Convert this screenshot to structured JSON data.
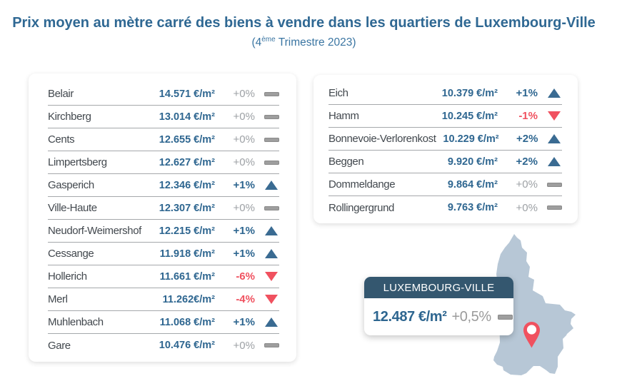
{
  "title": "Prix moyen au mètre carré des biens à vendre dans les quartiers de Luxembourg-Ville",
  "subtitle": {
    "prefix": "(4",
    "sup": "ème",
    "suffix": " Trimestre 2023)"
  },
  "panels": {
    "left": {
      "rows": [
        {
          "name": "Belair",
          "price": "14.571 €/m²",
          "change": "+0%",
          "trend": "flat"
        },
        {
          "name": "Kirchberg",
          "price": "13.014 €/m²",
          "change": "+0%",
          "trend": "flat"
        },
        {
          "name": "Cents",
          "price": "12.655 €/m²",
          "change": "+0%",
          "trend": "flat"
        },
        {
          "name": "Limpertsberg",
          "price": "12.627 €/m²",
          "change": "+0%",
          "trend": "flat"
        },
        {
          "name": "Gasperich",
          "price": "12.346 €/m²",
          "change": "+1%",
          "trend": "up"
        },
        {
          "name": "Ville-Haute",
          "price": "12.307 €/m²",
          "change": "+0%",
          "trend": "flat"
        },
        {
          "name": "Neudorf-Weimershof",
          "price": "12.215 €/m²",
          "change": "+1%",
          "trend": "up"
        },
        {
          "name": "Cessange",
          "price": "11.918 €/m²",
          "change": "+1%",
          "trend": "up"
        },
        {
          "name": "Hollerich",
          "price": "11.661 €/m²",
          "change": "-6%",
          "trend": "down"
        },
        {
          "name": "Merl",
          "price": "11.262€/m²",
          "change": "-4%",
          "trend": "down"
        },
        {
          "name": "Muhlenbach",
          "price": "11.068 €/m²",
          "change": "+1%",
          "trend": "up"
        },
        {
          "name": "Gare",
          "price": "10.476 €/m²",
          "change": "+0%",
          "trend": "flat"
        }
      ]
    },
    "right": {
      "rows": [
        {
          "name": "Eich",
          "price": "10.379 €/m²",
          "change": "+1%",
          "trend": "up"
        },
        {
          "name": "Hamm",
          "price": "10.245 €/m²",
          "change": "-1%",
          "trend": "down"
        },
        {
          "name": "Bonnevoie-Verlorenkost",
          "price": "10.229 €/m²",
          "change": "+2%",
          "trend": "up"
        },
        {
          "name": "Beggen",
          "price": "9.920 €/m²",
          "change": "+2%",
          "trend": "up"
        },
        {
          "name": "Dommeldange",
          "price": "9.864 €/m²",
          "change": "+0%",
          "trend": "flat"
        },
        {
          "name": "Rollingergrund",
          "price": "9.763 €/m²",
          "change": "+0%",
          "trend": "flat"
        }
      ]
    }
  },
  "map_callout": {
    "label": "LUXEMBOURG-VILLE",
    "price": "12.487 €/m²",
    "change": "+0,5%",
    "trend": "flat"
  },
  "colors": {
    "title_blue": "#2f6893",
    "price_blue": "#2e6690",
    "up_blue": "#3a6b92",
    "down_red": "#f0515f",
    "neutral_gray": "#9e9e9e",
    "map_fill": "#b7c7d6",
    "callout_header": "#34576f",
    "pin_red": "#f0515f"
  },
  "chart_data": {
    "type": "table",
    "title": "Prix moyen au mètre carré des biens à vendre dans les quartiers de Luxembourg-Ville",
    "subtitle": "(4ème Trimestre 2023)",
    "unit": "€/m²",
    "columns": [
      "quartier",
      "prix_eur_m2",
      "evolution_pct"
    ],
    "rows": [
      {
        "quartier": "Belair",
        "prix_eur_m2": 14571,
        "evolution_pct": 0,
        "trend": "flat"
      },
      {
        "quartier": "Kirchberg",
        "prix_eur_m2": 13014,
        "evolution_pct": 0,
        "trend": "flat"
      },
      {
        "quartier": "Cents",
        "prix_eur_m2": 12655,
        "evolution_pct": 0,
        "trend": "flat"
      },
      {
        "quartier": "Limpertsberg",
        "prix_eur_m2": 12627,
        "evolution_pct": 0,
        "trend": "flat"
      },
      {
        "quartier": "Gasperich",
        "prix_eur_m2": 12346,
        "evolution_pct": 1,
        "trend": "up"
      },
      {
        "quartier": "Ville-Haute",
        "prix_eur_m2": 12307,
        "evolution_pct": 0,
        "trend": "flat"
      },
      {
        "quartier": "Neudorf-Weimershof",
        "prix_eur_m2": 12215,
        "evolution_pct": 1,
        "trend": "up"
      },
      {
        "quartier": "Cessange",
        "prix_eur_m2": 11918,
        "evolution_pct": 1,
        "trend": "up"
      },
      {
        "quartier": "Hollerich",
        "prix_eur_m2": 11661,
        "evolution_pct": -6,
        "trend": "down"
      },
      {
        "quartier": "Merl",
        "prix_eur_m2": 11262,
        "evolution_pct": -4,
        "trend": "down"
      },
      {
        "quartier": "Muhlenbach",
        "prix_eur_m2": 11068,
        "evolution_pct": 1,
        "trend": "up"
      },
      {
        "quartier": "Gare",
        "prix_eur_m2": 10476,
        "evolution_pct": 0,
        "trend": "flat"
      },
      {
        "quartier": "Eich",
        "prix_eur_m2": 10379,
        "evolution_pct": 1,
        "trend": "up"
      },
      {
        "quartier": "Hamm",
        "prix_eur_m2": 10245,
        "evolution_pct": -1,
        "trend": "down"
      },
      {
        "quartier": "Bonnevoie-Verlorenkost",
        "prix_eur_m2": 10229,
        "evolution_pct": 2,
        "trend": "up"
      },
      {
        "quartier": "Beggen",
        "prix_eur_m2": 9920,
        "evolution_pct": 2,
        "trend": "up"
      },
      {
        "quartier": "Dommeldange",
        "prix_eur_m2": 9864,
        "evolution_pct": 0,
        "trend": "flat"
      },
      {
        "quartier": "Rollingergrund",
        "prix_eur_m2": 9763,
        "evolution_pct": 0,
        "trend": "flat"
      }
    ],
    "total": {
      "quartier": "Luxembourg-Ville",
      "prix_eur_m2": 12487,
      "evolution_pct": 0.5,
      "trend": "flat"
    }
  }
}
